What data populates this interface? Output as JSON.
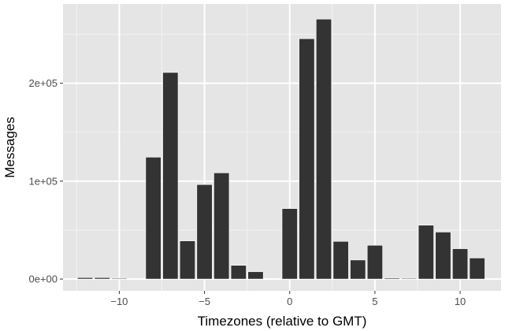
{
  "chart_data": {
    "type": "bar",
    "title": "",
    "xlabel": "Timezones (relative to GMT)",
    "ylabel": "Messages",
    "x": [
      -12,
      -11,
      -10,
      -8,
      -7,
      -6,
      -5,
      -4,
      -3,
      -2,
      0,
      1,
      2,
      3,
      4,
      5,
      6,
      7,
      8,
      9,
      10,
      11
    ],
    "values": [
      1500,
      1500,
      800,
      124500,
      211000,
      39000,
      96500,
      108500,
      14000,
      7500,
      72000,
      245500,
      265500,
      38500,
      19500,
      34500,
      1000,
      800,
      55000,
      48000,
      31000,
      21500
    ],
    "xlim": [
      -13.3,
      12.4
    ],
    "ylim": [
      -12000,
      281000
    ],
    "x_ticks": [
      -10,
      -5,
      0,
      5,
      10
    ],
    "x_tick_labels": [
      "−10",
      "−5",
      "0",
      "5",
      "10"
    ],
    "y_ticks": [
      0,
      100000,
      200000
    ],
    "y_tick_labels": [
      "0e+00",
      "1e+05",
      "2e+05"
    ],
    "grid": true,
    "legend": "none",
    "colors": {
      "panel_background": "#e5e5e5",
      "grid_major": "#ffffff",
      "grid_minor": "#f2f2f2",
      "bar_fill": "#333333",
      "bar_outline": "#ffffff",
      "tick_text": "#4d4d4d",
      "axis_title": "#000000"
    }
  }
}
